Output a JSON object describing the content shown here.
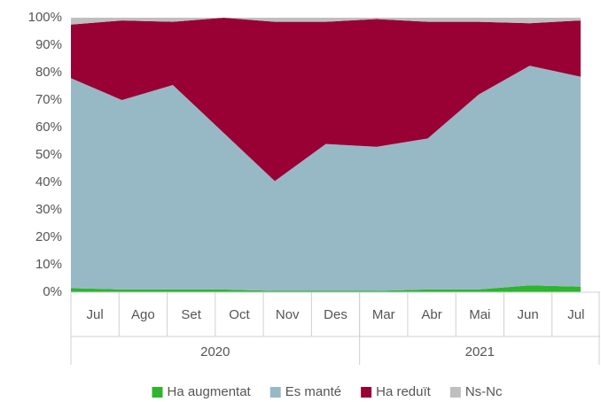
{
  "chart_data": {
    "type": "stacked_area",
    "categories": [
      "Jul",
      "Ago",
      "Set",
      "Oct",
      "Nov",
      "Des",
      "Mar",
      "Abr",
      "Mai",
      "Jun",
      "Jul"
    ],
    "category_groups": [
      "2020",
      "2020",
      "2020",
      "2020",
      "2020",
      "2020",
      "2021",
      "2021",
      "2021",
      "2021",
      "2021"
    ],
    "series": [
      {
        "name": "Ha augmentat",
        "color": "#2db52d",
        "values": [
          1.5,
          1,
          1,
          1,
          0.5,
          0.5,
          0.5,
          1,
          1,
          2.5,
          2
        ]
      },
      {
        "name": "Es manté",
        "color": "#97b9c5",
        "values": [
          76.5,
          69,
          74.5,
          57,
          40,
          53.5,
          52.5,
          55,
          71,
          80,
          76.5
        ]
      },
      {
        "name": "Ha reduït",
        "color": "#990033",
        "values": [
          19.5,
          29,
          23,
          42,
          58,
          44.5,
          46.5,
          42.5,
          26.5,
          15.5,
          20.5
        ]
      },
      {
        "name": "Ns-Nc",
        "color": "#bfbfbf",
        "values": [
          2.5,
          1,
          1.5,
          0,
          1.5,
          1.5,
          0.5,
          1.5,
          1.5,
          2,
          1
        ]
      }
    ],
    "ylim": [
      0,
      100
    ],
    "yticks": [
      {
        "value": 0,
        "label": "0%"
      },
      {
        "value": 10,
        "label": "10%"
      },
      {
        "value": 20,
        "label": "20%"
      },
      {
        "value": 30,
        "label": "30%"
      },
      {
        "value": 40,
        "label": "40%"
      },
      {
        "value": 50,
        "label": "50%"
      },
      {
        "value": 60,
        "label": "60%"
      },
      {
        "value": 70,
        "label": "70%"
      },
      {
        "value": 80,
        "label": "80%"
      },
      {
        "value": 90,
        "label": "90%"
      },
      {
        "value": 100,
        "label": "100%"
      }
    ],
    "grid": false,
    "legend": "bottom"
  }
}
